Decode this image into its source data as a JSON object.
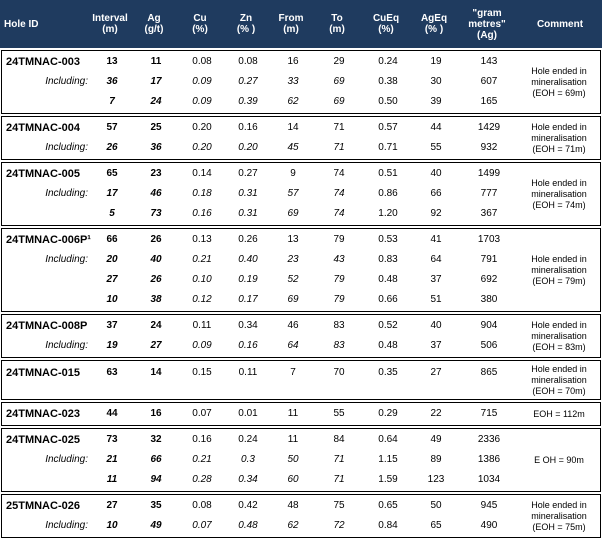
{
  "header": {
    "hole_id": "Hole ID",
    "interval": "Interval\n(m)",
    "ag": "Ag\n(g/t)",
    "cu": "Cu\n(%)",
    "zn": "Zn\n(% )",
    "from": "From\n(m)",
    "to": "To\n(m)",
    "cueq": "CuEq\n(%)",
    "ageq": "AgEq\n(% )",
    "gram_metres": "\"gram\nmetres\"\n(Ag)",
    "comment": "Comment"
  },
  "blocks": [
    {
      "comment": "Hole ended in\nmineralisation\n(EOH = 69m)",
      "rows": [
        {
          "id": "24TMNAC-003",
          "including": false,
          "interval": "13",
          "ag": "11",
          "cu": "0.08",
          "zn": "0.08",
          "from": "16",
          "to": "29",
          "cueq": "0.24",
          "ageq": "19",
          "gm": "143"
        },
        {
          "id": "Including:",
          "including": true,
          "interval": "36",
          "ag": "17",
          "cu": "0.09",
          "zn": "0.27",
          "from": "33",
          "to": "69",
          "cueq": "0.38",
          "ageq": "30",
          "gm": "607"
        },
        {
          "id": "",
          "including": true,
          "interval": "7",
          "ag": "24",
          "cu": "0.09",
          "zn": "0.39",
          "from": "62",
          "to": "69",
          "cueq": "0.50",
          "ageq": "39",
          "gm": "165"
        }
      ]
    },
    {
      "comment": "Hole ended in\nmineralisation\n(EOH = 71m)",
      "rows": [
        {
          "id": "24TMNAC-004",
          "including": false,
          "interval": "57",
          "ag": "25",
          "cu": "0.20",
          "zn": "0.16",
          "from": "14",
          "to": "71",
          "cueq": "0.57",
          "ageq": "44",
          "gm": "1429"
        },
        {
          "id": "Including:",
          "including": true,
          "interval": "26",
          "ag": "36",
          "cu": "0.20",
          "zn": "0.20",
          "from": "45",
          "to": "71",
          "cueq": "0.71",
          "ageq": "55",
          "gm": "932"
        }
      ]
    },
    {
      "comment": "Hole ended in\nmineralisation\n(EOH = 74m)",
      "rows": [
        {
          "id": "24TMNAC-005",
          "including": false,
          "interval": "65",
          "ag": "23",
          "cu": "0.14",
          "zn": "0.27",
          "from": "9",
          "to": "74",
          "cueq": "0.51",
          "ageq": "40",
          "gm": "1499"
        },
        {
          "id": "Including:",
          "including": true,
          "interval": "17",
          "ag": "46",
          "cu": "0.18",
          "zn": "0.31",
          "from": "57",
          "to": "74",
          "cueq": "0.86",
          "ageq": "66",
          "gm": "777"
        },
        {
          "id": "",
          "including": true,
          "interval": "5",
          "ag": "73",
          "cu": "0.16",
          "zn": "0.31",
          "from": "69",
          "to": "74",
          "cueq": "1.20",
          "ageq": "92",
          "gm": "367"
        }
      ]
    },
    {
      "comment": "Hole ended in\nmineralisation\n(EOH = 79m)",
      "rows": [
        {
          "id": "24TMNAC-006P¹",
          "including": false,
          "interval": "66",
          "ag": "26",
          "cu": "0.13",
          "zn": "0.26",
          "from": "13",
          "to": "79",
          "cueq": "0.53",
          "ageq": "41",
          "gm": "1703"
        },
        {
          "id": "Including:",
          "including": true,
          "interval": "20",
          "ag": "40",
          "cu": "0.21",
          "zn": "0.40",
          "from": "23",
          "to": "43",
          "cueq": "0.83",
          "ageq": "64",
          "gm": "791"
        },
        {
          "id": "",
          "including": true,
          "interval": "27",
          "ag": "26",
          "cu": "0.10",
          "zn": "0.19",
          "from": "52",
          "to": "79",
          "cueq": "0.48",
          "ageq": "37",
          "gm": "692"
        },
        {
          "id": "",
          "including": true,
          "interval": "10",
          "ag": "38",
          "cu": "0.12",
          "zn": "0.17",
          "from": "69",
          "to": "79",
          "cueq": "0.66",
          "ageq": "51",
          "gm": "380"
        }
      ]
    },
    {
      "comment": "Hole ended in\nmineralisation\n(EOH = 83m)",
      "rows": [
        {
          "id": "24TMNAC-008P",
          "including": false,
          "interval": "37",
          "ag": "24",
          "cu": "0.11",
          "zn": "0.34",
          "from": "46",
          "to": "83",
          "cueq": "0.52",
          "ageq": "40",
          "gm": "904"
        },
        {
          "id": "Including:",
          "including": true,
          "interval": "19",
          "ag": "27",
          "cu": "0.09",
          "zn": "0.16",
          "from": "64",
          "to": "83",
          "cueq": "0.48",
          "ageq": "37",
          "gm": "506"
        }
      ]
    },
    {
      "comment": "Hole ended in\nmineralisation\n(EOH = 70m)",
      "rows": [
        {
          "id": "24TMNAC-015",
          "including": false,
          "interval": "63",
          "ag": "14",
          "cu": "0.15",
          "zn": "0.11",
          "from": "7",
          "to": "70",
          "cueq": "0.35",
          "ageq": "27",
          "gm": "865"
        }
      ]
    },
    {
      "comment": "EOH = 112m",
      "rows": [
        {
          "id": "24TMNAC-023",
          "including": false,
          "interval": "44",
          "ag": "16",
          "cu": "0.07",
          "zn": "0.01",
          "from": "11",
          "to": "55",
          "cueq": "0.29",
          "ageq": "22",
          "gm": "715"
        }
      ]
    },
    {
      "comment": "E OH = 90m",
      "rows": [
        {
          "id": "24TMNAC-025",
          "including": false,
          "interval": "73",
          "ag": "32",
          "cu": "0.16",
          "zn": "0.24",
          "from": "11",
          "to": "84",
          "cueq": "0.64",
          "ageq": "49",
          "gm": "2336"
        },
        {
          "id": "Including:",
          "including": true,
          "interval": "21",
          "ag": "66",
          "cu": "0.21",
          "zn": "0.3",
          "from": "50",
          "to": "71",
          "cueq": "1.15",
          "ageq": "89",
          "gm": "1386"
        },
        {
          "id": "",
          "including": true,
          "interval": "11",
          "ag": "94",
          "cu": "0.28",
          "zn": "0.34",
          "from": "60",
          "to": "71",
          "cueq": "1.59",
          "ageq": "123",
          "gm": "1034"
        }
      ]
    },
    {
      "comment": "Hole ended in\nmineralisation\n(EOH = 75m)",
      "rows": [
        {
          "id": "25TMNAC-026",
          "including": false,
          "interval": "27",
          "ag": "35",
          "cu": "0.08",
          "zn": "0.42",
          "from": "48",
          "to": "75",
          "cueq": "0.65",
          "ageq": "50",
          "gm": "945"
        },
        {
          "id": "Including:",
          "including": true,
          "interval": "10",
          "ag": "49",
          "cu": "0.07",
          "zn": "0.48",
          "from": "62",
          "to": "72",
          "cueq": "0.84",
          "ageq": "65",
          "gm": "490"
        }
      ]
    }
  ]
}
